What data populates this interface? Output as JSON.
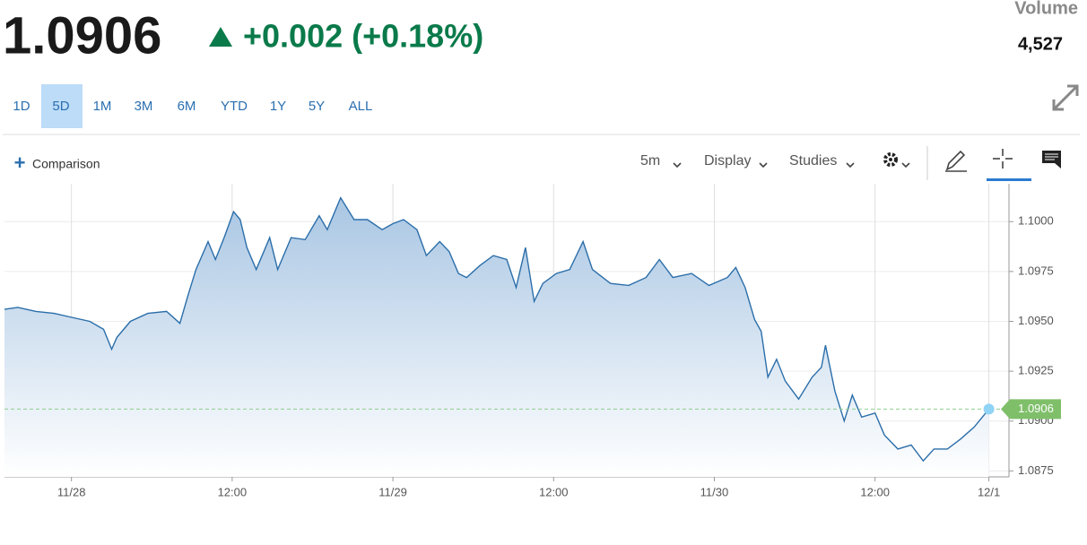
{
  "header": {
    "price": "1.0906",
    "change": "+0.002 (+0.18%)",
    "volume_label": "Volume",
    "volume": "4,527"
  },
  "ranges": [
    "1D",
    "5D",
    "1M",
    "3M",
    "6M",
    "YTD",
    "1Y",
    "5Y",
    "ALL"
  ],
  "selected_range": "5D",
  "toolbar": {
    "comparison": "Comparison",
    "interval": "5m",
    "display": "Display",
    "studies": "Studies"
  },
  "chart_data": {
    "type": "area",
    "x": [
      -5,
      -4,
      -2.65,
      -1.3,
      0,
      1.37,
      2.4,
      3.0,
      3.4,
      4.4,
      5.7,
      7.1,
      8.1,
      8.7,
      9.3,
      10.2,
      10.75,
      11.4,
      12.1,
      12.6,
      13.1,
      13.8,
      14.8,
      15.4,
      16.4,
      17.45,
      18.5,
      19.1,
      20.1,
      21.1,
      22.1,
      23.2,
      24.0,
      24.8,
      25.8,
      26.5,
      27.5,
      28.2,
      28.9,
      29.5,
      30.5,
      31.5,
      32.5,
      33.2,
      33.9,
      34.55,
      35.2,
      36.2,
      37.2,
      38.2,
      38.9,
      40.25,
      41.6,
      42.9,
      43.9,
      44.9,
      46.3,
      47.6,
      48.97,
      49.6,
      50.3,
      51.0,
      51.5,
      52.0,
      52.65,
      53.3,
      54.3,
      55.3,
      56.0,
      56.3,
      57.0,
      57.7,
      58.3,
      59.0,
      60.0,
      60.7,
      61.7,
      62.7,
      63.6,
      64.4,
      65.4,
      66.4,
      67.4,
      68.5
    ],
    "series": [
      {
        "color": "#2b6ea9",
        "values": [
          1.0956,
          1.0957,
          1.0955,
          1.0954,
          1.0952,
          1.095,
          1.0946,
          1.0936,
          1.0942,
          1.095,
          1.0954,
          1.0955,
          1.0949,
          1.0963,
          1.0976,
          1.099,
          1.0981,
          1.0992,
          1.1005,
          1.1001,
          1.0987,
          1.0976,
          1.0992,
          1.0976,
          1.0992,
          1.0991,
          1.1003,
          1.0996,
          1.1012,
          1.1001,
          1.1001,
          1.0996,
          1.0999,
          1.1001,
          1.0996,
          1.0983,
          1.099,
          1.0985,
          1.0974,
          1.0972,
          1.0978,
          1.0983,
          1.0981,
          1.0967,
          1.0987,
          1.096,
          1.0969,
          1.0974,
          1.0976,
          1.099,
          1.0976,
          1.0969,
          1.0968,
          1.0972,
          1.0981,
          1.0972,
          1.0974,
          1.0968,
          1.0972,
          1.0977,
          1.0967,
          1.0951,
          1.0945,
          1.0922,
          1.0931,
          1.092,
          1.0911,
          1.0922,
          1.0927,
          1.0938,
          1.0915,
          1.09,
          1.0913,
          1.0902,
          1.0904,
          1.0893,
          1.0886,
          1.0888,
          1.088,
          1.0886,
          1.0886,
          1.0891,
          1.0897,
          1.0906
        ]
      }
    ],
    "xlim": [
      -5,
      70
    ],
    "xticks": [
      {
        "value": 0,
        "label": "11/28"
      },
      {
        "value": 12,
        "label": "12:00"
      },
      {
        "value": 24,
        "label": "11/29"
      },
      {
        "value": 36,
        "label": "12:00"
      },
      {
        "value": 48,
        "label": "11/30"
      },
      {
        "value": 60,
        "label": "12:00"
      },
      {
        "value": 68.5,
        "label": "12/1"
      }
    ],
    "ylim": [
      1.0872,
      1.1019
    ],
    "yticks": [
      1.0875,
      {
        "value": 1.09,
        "label": "1.0900"
      },
      1.0925,
      {
        "value": 1.095,
        "label": "1.0950"
      },
      1.0975,
      {
        "value": 1.1,
        "label": "1.1000"
      }
    ],
    "grid": true
  }
}
